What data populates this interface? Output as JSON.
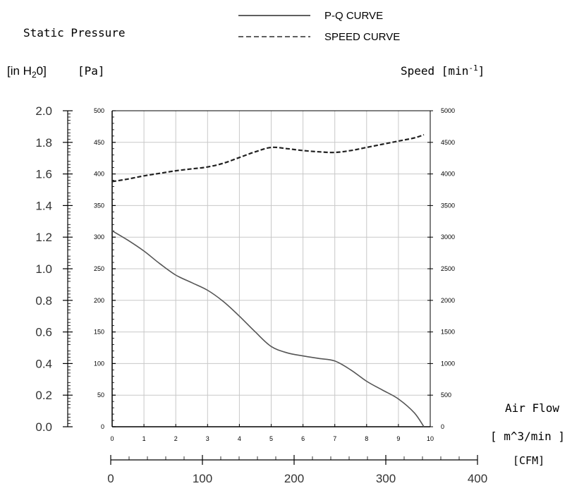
{
  "legend": {
    "pq_label": "P-Q CURVE",
    "speed_label": "SPEED CURVE"
  },
  "labels": {
    "static_pressure": "Static Pressure",
    "in_h2o_prefix": "[in H",
    "in_h2o_sub": "2",
    "in_h2o_suffix": "0]",
    "pa": "[Pa]",
    "speed_prefix": "Speed [min",
    "speed_sup": "-1",
    "speed_suffix": "]",
    "air_flow": "Air Flow",
    "m3min": "[ m^3/min ]",
    "cfm": "[CFM]"
  },
  "chart_data": {
    "type": "line",
    "x": [
      0,
      0.5,
      1,
      1.5,
      2,
      2.5,
      3,
      3.5,
      4,
      4.5,
      5,
      5.5,
      6,
      6.5,
      7,
      7.5,
      8,
      8.5,
      9,
      9.5,
      9.8
    ],
    "series": [
      {
        "name": "P-Q CURVE",
        "axis": "Pa",
        "style": "solid",
        "values": [
          310,
          295,
          278,
          258,
          240,
          228,
          216,
          198,
          175,
          150,
          127,
          117,
          112,
          108,
          104,
          90,
          72,
          58,
          44,
          22,
          0
        ]
      },
      {
        "name": "SPEED CURVE",
        "axis": "min-1",
        "style": "dashed",
        "values": [
          3880,
          3920,
          3970,
          4010,
          4050,
          4080,
          4110,
          4170,
          4260,
          4350,
          4420,
          4400,
          4370,
          4350,
          4340,
          4370,
          4420,
          4470,
          4520,
          4570,
          4620
        ]
      }
    ],
    "x_ticks": [
      "0",
      "1",
      "2",
      "3",
      "4",
      "5",
      "6",
      "7",
      "8",
      "9",
      "10"
    ],
    "xlim": [
      0,
      10
    ],
    "pa_ticks": [
      "0",
      "50",
      "100",
      "150",
      "200",
      "250",
      "300",
      "350",
      "400",
      "450",
      "500"
    ],
    "pa_lim": [
      0,
      500
    ],
    "speed_ticks": [
      "0",
      "500",
      "1000",
      "1500",
      "2000",
      "2500",
      "3000",
      "3500",
      "4000",
      "4500",
      "5000"
    ],
    "speed_lim": [
      0,
      5000
    ],
    "inh2o_ticks": [
      "0.0",
      "0.2",
      "0.4",
      "0.6",
      "0.8",
      "1.0",
      "1.2",
      "1.4",
      "1.6",
      "1.8",
      "2.0"
    ],
    "inh2o_lim": [
      0,
      2.0
    ],
    "cfm_ticks": [
      "0",
      "100",
      "200",
      "300",
      "400"
    ],
    "cfm_lim": [
      0,
      400
    ],
    "grid": true
  }
}
